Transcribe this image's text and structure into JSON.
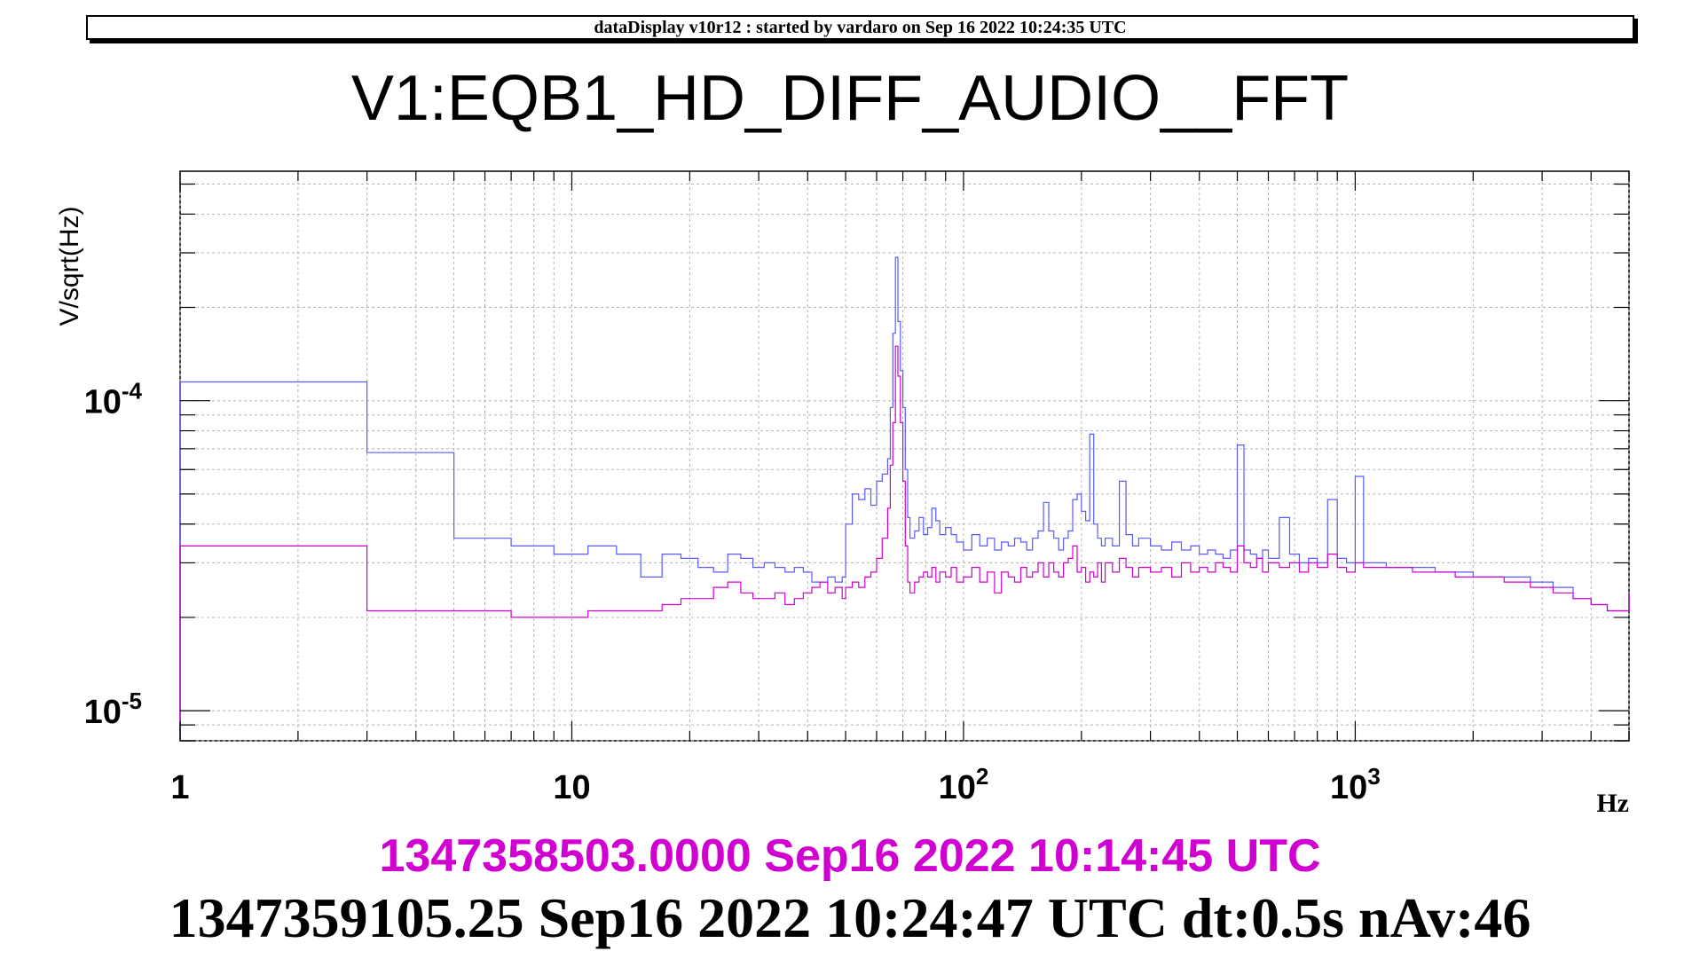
{
  "header": {
    "text": "dataDisplay v10r12 : started by vardaro on Sep 16 2022 10:24:35 UTC"
  },
  "title": "V1:EQB1_HD_DIFF_AUDIO__FFT",
  "footer": {
    "reference_time": "1347358503.0000 Sep16 2022 10:14:45 UTC",
    "current_time": "1347359105.25 Sep16 2022 10:24:47 UTC dt:0.5s nAv:46"
  },
  "colors": {
    "current": "#5a5aff",
    "reference": "#d000d0",
    "grid": "#b4b4b4"
  },
  "chart_data": {
    "type": "line",
    "title": "V1:EQB1_HD_DIFF_AUDIO__FFT",
    "xlabel": "Hz",
    "ylabel": "V/sqrt(Hz)",
    "x_scale": "log",
    "y_scale": "log",
    "xlim": [
      1,
      5000
    ],
    "ylim": [
      8e-06,
      0.00055
    ],
    "x_tick_labels": [
      "1",
      "10",
      "10^2",
      "10^3"
    ],
    "y_tick_labels": [
      "10^-5",
      "10^-4"
    ],
    "grid": true,
    "series": [
      {
        "color": "#5a5aff",
        "points": [
          [
            1,
            0.000115
          ],
          [
            3,
            6.8e-05
          ],
          [
            5,
            3.6e-05
          ],
          [
            7,
            3.4e-05
          ],
          [
            9,
            3.2e-05
          ],
          [
            11,
            3.4e-05
          ],
          [
            13,
            3.2e-05
          ],
          [
            15,
            2.7e-05
          ],
          [
            17,
            3.2e-05
          ],
          [
            19,
            3.1e-05
          ],
          [
            21,
            2.9e-05
          ],
          [
            23,
            2.8e-05
          ],
          [
            25,
            3.2e-05
          ],
          [
            27,
            3.1e-05
          ],
          [
            29,
            2.9e-05
          ],
          [
            31,
            3e-05
          ],
          [
            33,
            2.9e-05
          ],
          [
            35,
            2.8e-05
          ],
          [
            37,
            2.9e-05
          ],
          [
            39,
            2.8e-05
          ],
          [
            41,
            2.6e-05
          ],
          [
            43,
            2.6e-05
          ],
          [
            45,
            2.7e-05
          ],
          [
            47,
            2.6e-05
          ],
          [
            49,
            2.7e-05
          ],
          [
            50,
            4e-05
          ],
          [
            52,
            5e-05
          ],
          [
            54,
            4.8e-05
          ],
          [
            56,
            5.2e-05
          ],
          [
            58,
            4.6e-05
          ],
          [
            60,
            5.5e-05
          ],
          [
            62,
            5.8e-05
          ],
          [
            64,
            6.5e-05
          ],
          [
            65,
            9.5e-05
          ],
          [
            66,
            0.000165
          ],
          [
            67,
            0.00029
          ],
          [
            68,
            0.00018
          ],
          [
            69,
            0.000125
          ],
          [
            70,
            9.5e-05
          ],
          [
            71,
            6e-05
          ],
          [
            72,
            4.2e-05
          ],
          [
            73,
            3.6e-05
          ],
          [
            75,
            3.8e-05
          ],
          [
            77,
            4.2e-05
          ],
          [
            79,
            3.7e-05
          ],
          [
            81,
            3.9e-05
          ],
          [
            83,
            4.5e-05
          ],
          [
            85,
            4.1e-05
          ],
          [
            87,
            3.7e-05
          ],
          [
            90,
            3.9e-05
          ],
          [
            93,
            3.7e-05
          ],
          [
            96,
            3.5e-05
          ],
          [
            100,
            3.3e-05
          ],
          [
            105,
            3.7e-05
          ],
          [
            110,
            3.4e-05
          ],
          [
            115,
            3.6e-05
          ],
          [
            120,
            3.3e-05
          ],
          [
            125,
            3.5e-05
          ],
          [
            130,
            3.4e-05
          ],
          [
            135,
            3.6e-05
          ],
          [
            140,
            3.5e-05
          ],
          [
            145,
            3.3e-05
          ],
          [
            150,
            3.6e-05
          ],
          [
            155,
            3.8e-05
          ],
          [
            160,
            4.7e-05
          ],
          [
            165,
            3.8e-05
          ],
          [
            170,
            3.6e-05
          ],
          [
            175,
            3.3e-05
          ],
          [
            180,
            3.6e-05
          ],
          [
            185,
            3.8e-05
          ],
          [
            190,
            4.8e-05
          ],
          [
            195,
            5e-05
          ],
          [
            200,
            4.4e-05
          ],
          [
            205,
            4.1e-05
          ],
          [
            210,
            7.8e-05
          ],
          [
            215,
            4e-05
          ],
          [
            220,
            3.6e-05
          ],
          [
            225,
            3.4e-05
          ],
          [
            230,
            3.6e-05
          ],
          [
            240,
            3.4e-05
          ],
          [
            250,
            5.5e-05
          ],
          [
            260,
            3.7e-05
          ],
          [
            270,
            3.4e-05
          ],
          [
            280,
            3.6e-05
          ],
          [
            300,
            3.4e-05
          ],
          [
            320,
            3.3e-05
          ],
          [
            340,
            3.5e-05
          ],
          [
            360,
            3.3e-05
          ],
          [
            380,
            3.4e-05
          ],
          [
            400,
            3.2e-05
          ],
          [
            420,
            3.3e-05
          ],
          [
            440,
            3.2e-05
          ],
          [
            460,
            3.1e-05
          ],
          [
            480,
            3.3e-05
          ],
          [
            500,
            7.2e-05
          ],
          [
            520,
            3.3e-05
          ],
          [
            540,
            3.2e-05
          ],
          [
            560,
            3.1e-05
          ],
          [
            580,
            3.3e-05
          ],
          [
            600,
            3.1e-05
          ],
          [
            640,
            4.2e-05
          ],
          [
            680,
            3.2e-05
          ],
          [
            720,
            3e-05
          ],
          [
            760,
            3.1e-05
          ],
          [
            800,
            3e-05
          ],
          [
            850,
            4.8e-05
          ],
          [
            900,
            3.1e-05
          ],
          [
            950,
            3e-05
          ],
          [
            1000,
            5.7e-05
          ],
          [
            1050,
            3e-05
          ],
          [
            1200,
            2.9e-05
          ],
          [
            1400,
            2.9e-05
          ],
          [
            1600,
            2.8e-05
          ],
          [
            1800,
            2.8e-05
          ],
          [
            2000,
            2.7e-05
          ],
          [
            2400,
            2.7e-05
          ],
          [
            2800,
            2.6e-05
          ],
          [
            3200,
            2.5e-05
          ],
          [
            3600,
            2.3e-05
          ],
          [
            4000,
            2.2e-05
          ],
          [
            4400,
            2.1e-05
          ],
          [
            4700,
            2.1e-05
          ],
          [
            5000,
            2.4e-05
          ]
        ]
      },
      {
        "color": "#d000d0",
        "points": [
          [
            1,
            3.4e-05
          ],
          [
            3,
            2.1e-05
          ],
          [
            5,
            2.1e-05
          ],
          [
            7,
            2e-05
          ],
          [
            9,
            2e-05
          ],
          [
            11,
            2.1e-05
          ],
          [
            13,
            2.1e-05
          ],
          [
            15,
            2.1e-05
          ],
          [
            17,
            2.2e-05
          ],
          [
            19,
            2.3e-05
          ],
          [
            21,
            2.3e-05
          ],
          [
            23,
            2.5e-05
          ],
          [
            25,
            2.6e-05
          ],
          [
            27,
            2.4e-05
          ],
          [
            29,
            2.3e-05
          ],
          [
            31,
            2.3e-05
          ],
          [
            33,
            2.4e-05
          ],
          [
            35,
            2.2e-05
          ],
          [
            37,
            2.3e-05
          ],
          [
            39,
            2.4e-05
          ],
          [
            41,
            2.5e-05
          ],
          [
            43,
            2.6e-05
          ],
          [
            45,
            2.4e-05
          ],
          [
            47,
            2.5e-05
          ],
          [
            49,
            2.3e-05
          ],
          [
            50,
            2.5e-05
          ],
          [
            52,
            2.6e-05
          ],
          [
            54,
            2.5e-05
          ],
          [
            56,
            2.7e-05
          ],
          [
            58,
            2.8e-05
          ],
          [
            60,
            3.1e-05
          ],
          [
            62,
            3.6e-05
          ],
          [
            64,
            4.5e-05
          ],
          [
            65,
            6.2e-05
          ],
          [
            66,
            8.5e-05
          ],
          [
            67,
            0.00015
          ],
          [
            68,
            0.00012
          ],
          [
            69,
            8.5e-05
          ],
          [
            70,
            5.5e-05
          ],
          [
            71,
            3.4e-05
          ],
          [
            72,
            2.6e-05
          ],
          [
            73,
            2.4e-05
          ],
          [
            75,
            2.6e-05
          ],
          [
            77,
            2.7e-05
          ],
          [
            79,
            2.8e-05
          ],
          [
            81,
            2.7e-05
          ],
          [
            83,
            2.9e-05
          ],
          [
            85,
            2.6e-05
          ],
          [
            87,
            2.8e-05
          ],
          [
            90,
            2.7e-05
          ],
          [
            93,
            2.9e-05
          ],
          [
            96,
            2.6e-05
          ],
          [
            100,
            2.7e-05
          ],
          [
            105,
            2.9e-05
          ],
          [
            110,
            2.6e-05
          ],
          [
            115,
            2.8e-05
          ],
          [
            120,
            2.4e-05
          ],
          [
            125,
            2.8e-05
          ],
          [
            130,
            2.7e-05
          ],
          [
            135,
            2.6e-05
          ],
          [
            140,
            2.9e-05
          ],
          [
            145,
            2.7e-05
          ],
          [
            150,
            2.8e-05
          ],
          [
            155,
            3e-05
          ],
          [
            160,
            2.7e-05
          ],
          [
            165,
            3e-05
          ],
          [
            170,
            2.8e-05
          ],
          [
            175,
            2.7e-05
          ],
          [
            180,
            3e-05
          ],
          [
            185,
            3.1e-05
          ],
          [
            190,
            3.4e-05
          ],
          [
            195,
            2.8e-05
          ],
          [
            200,
            2.9e-05
          ],
          [
            205,
            2.6e-05
          ],
          [
            210,
            2.8e-05
          ],
          [
            215,
            2.7e-05
          ],
          [
            220,
            3e-05
          ],
          [
            225,
            2.6e-05
          ],
          [
            230,
            3e-05
          ],
          [
            240,
            2.8e-05
          ],
          [
            250,
            3.1e-05
          ],
          [
            260,
            2.9e-05
          ],
          [
            270,
            2.7e-05
          ],
          [
            280,
            2.9e-05
          ],
          [
            300,
            2.8e-05
          ],
          [
            320,
            2.9e-05
          ],
          [
            340,
            2.7e-05
          ],
          [
            360,
            3e-05
          ],
          [
            380,
            2.8e-05
          ],
          [
            400,
            2.9e-05
          ],
          [
            420,
            2.8e-05
          ],
          [
            440,
            3e-05
          ],
          [
            460,
            2.9e-05
          ],
          [
            480,
            2.8e-05
          ],
          [
            500,
            3.4e-05
          ],
          [
            520,
            3e-05
          ],
          [
            540,
            2.9e-05
          ],
          [
            560,
            3.1e-05
          ],
          [
            580,
            2.8e-05
          ],
          [
            600,
            3e-05
          ],
          [
            640,
            2.9e-05
          ],
          [
            680,
            3e-05
          ],
          [
            720,
            2.8e-05
          ],
          [
            760,
            3e-05
          ],
          [
            800,
            2.9e-05
          ],
          [
            850,
            3.2e-05
          ],
          [
            900,
            2.9e-05
          ],
          [
            950,
            2.8e-05
          ],
          [
            1000,
            3e-05
          ],
          [
            1050,
            2.9e-05
          ],
          [
            1200,
            2.9e-05
          ],
          [
            1400,
            2.8e-05
          ],
          [
            1600,
            2.8e-05
          ],
          [
            1800,
            2.7e-05
          ],
          [
            2000,
            2.7e-05
          ],
          [
            2400,
            2.6e-05
          ],
          [
            2800,
            2.5e-05
          ],
          [
            3200,
            2.4e-05
          ],
          [
            3600,
            2.3e-05
          ],
          [
            4000,
            2.2e-05
          ],
          [
            4400,
            2.1e-05
          ],
          [
            4700,
            2.1e-05
          ],
          [
            5000,
            2.4e-05
          ]
        ]
      }
    ]
  }
}
